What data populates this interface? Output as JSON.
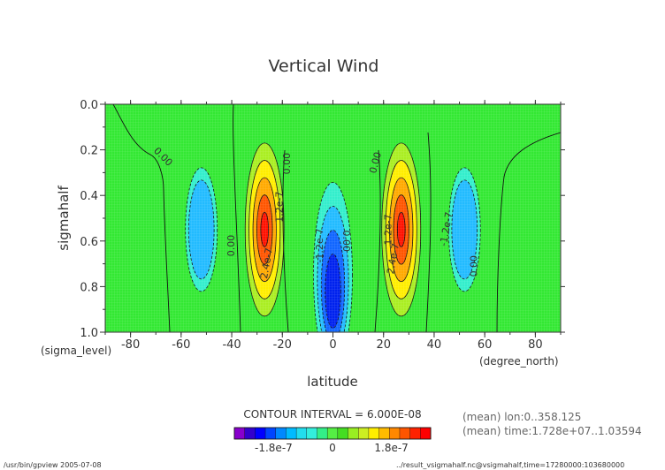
{
  "chart_data": {
    "type": "heatmap",
    "title": "Vertical Wind",
    "xlabel": "latitude",
    "ylabel": "sigmahalf",
    "x_unit": "(degree_north)",
    "y_unit": "(sigma_level)",
    "xlim": [
      -90,
      90
    ],
    "ylim": [
      1.0,
      0.0
    ],
    "x_ticks": [
      "-80",
      "-60",
      "-40",
      "-20",
      "0",
      "20",
      "40",
      "60",
      "80"
    ],
    "y_ticks": [
      "0.0",
      "0.2",
      "0.4",
      "0.6",
      "0.8",
      "1.0"
    ],
    "contour_interval_label": "CONTOUR INTERVAL = 6.000E-08",
    "contour_labels": [
      "0.00",
      "0.00",
      "0.00",
      "0.00",
      "0.00",
      "0.00",
      "1.2e-7",
      "1.2e-7",
      "2.4e-7",
      "2.4e-7",
      "-1.2e-7",
      "-1.2e-7"
    ],
    "features": [
      {
        "lat": -52,
        "sigma": 0.55,
        "value": -9e-08
      },
      {
        "lat": -27,
        "sigma": 0.55,
        "value": 2.6e-07
      },
      {
        "lat": 0,
        "sigma": 0.75,
        "value": -2e-07
      },
      {
        "lat": 27,
        "sigma": 0.55,
        "value": 2.6e-07
      },
      {
        "lat": 52,
        "sigma": 0.55,
        "value": -9e-08
      }
    ],
    "colorbar": {
      "tick_labels": [
        "-1.8e-7",
        "0",
        "1.8e-7"
      ],
      "colors": [
        "#8800cc",
        "#3300cc",
        "#0000ff",
        "#0044ff",
        "#0088ff",
        "#00bbff",
        "#22ddee",
        "#33eedd",
        "#33ee88",
        "#55ee44",
        "#44dd22",
        "#99ee22",
        "#ccee22",
        "#ffee00",
        "#ffbb00",
        "#ff8800",
        "#ff5500",
        "#ff2200",
        "#ff0000"
      ]
    },
    "meta_lines": [
      "(mean) lon:0..358.125",
      "(mean) time:1.728e+07..1.03594"
    ]
  },
  "footer": {
    "left": "/usr/bin/gpview   2005-07-08",
    "right": "../result_vsigmahalf.nc@vsigmahalf,time=17280000:103680000"
  }
}
